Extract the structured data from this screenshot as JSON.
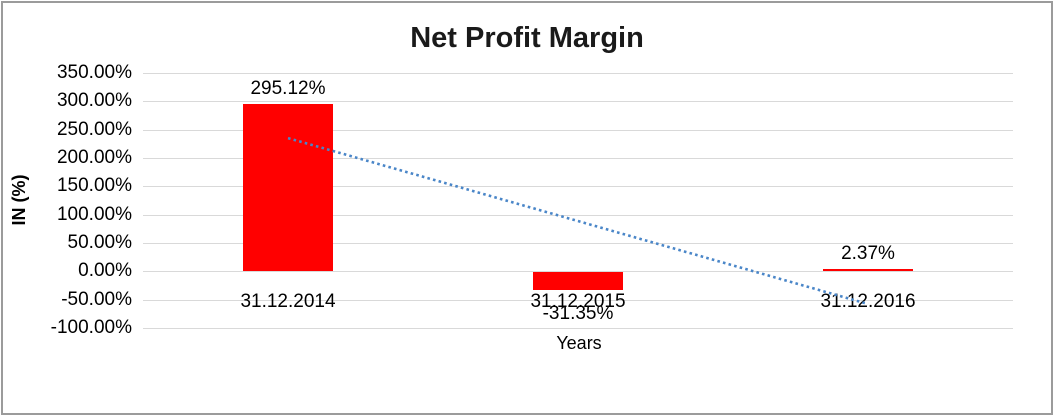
{
  "window": {
    "background_color": "#FFFFFF",
    "frame_color": "#9B9B9B"
  },
  "chart_data": {
    "type": "bar",
    "title": "Net Profit Margin",
    "xlabel": "Years",
    "ylabel": "IN (%)",
    "categories": [
      "31.12.2014",
      "31.12.2015",
      "31.12.2016"
    ],
    "series": [
      {
        "name": "Net Profit Margin",
        "values": [
          295.12,
          -31.35,
          2.37
        ]
      }
    ],
    "data_labels": [
      "295.12%",
      "-31.35%",
      "2.37%"
    ],
    "ytick_labels": [
      "350.00%",
      "300.00%",
      "250.00%",
      "200.00%",
      "150.00%",
      "100.00%",
      "50.00%",
      "0.00%",
      "-50.00%",
      "-100.00%"
    ],
    "ylim": [
      -100,
      350
    ],
    "ytick_step": 50,
    "grid": true,
    "legend": "none",
    "bar_color": "#FF0000",
    "gridline_color": "#D9D9D9",
    "text_color": "#000000",
    "trendline": {
      "type": "linear",
      "style": "dotted",
      "color": "#4A86C8",
      "start_value": 235.1,
      "end_value": -57.7
    }
  }
}
